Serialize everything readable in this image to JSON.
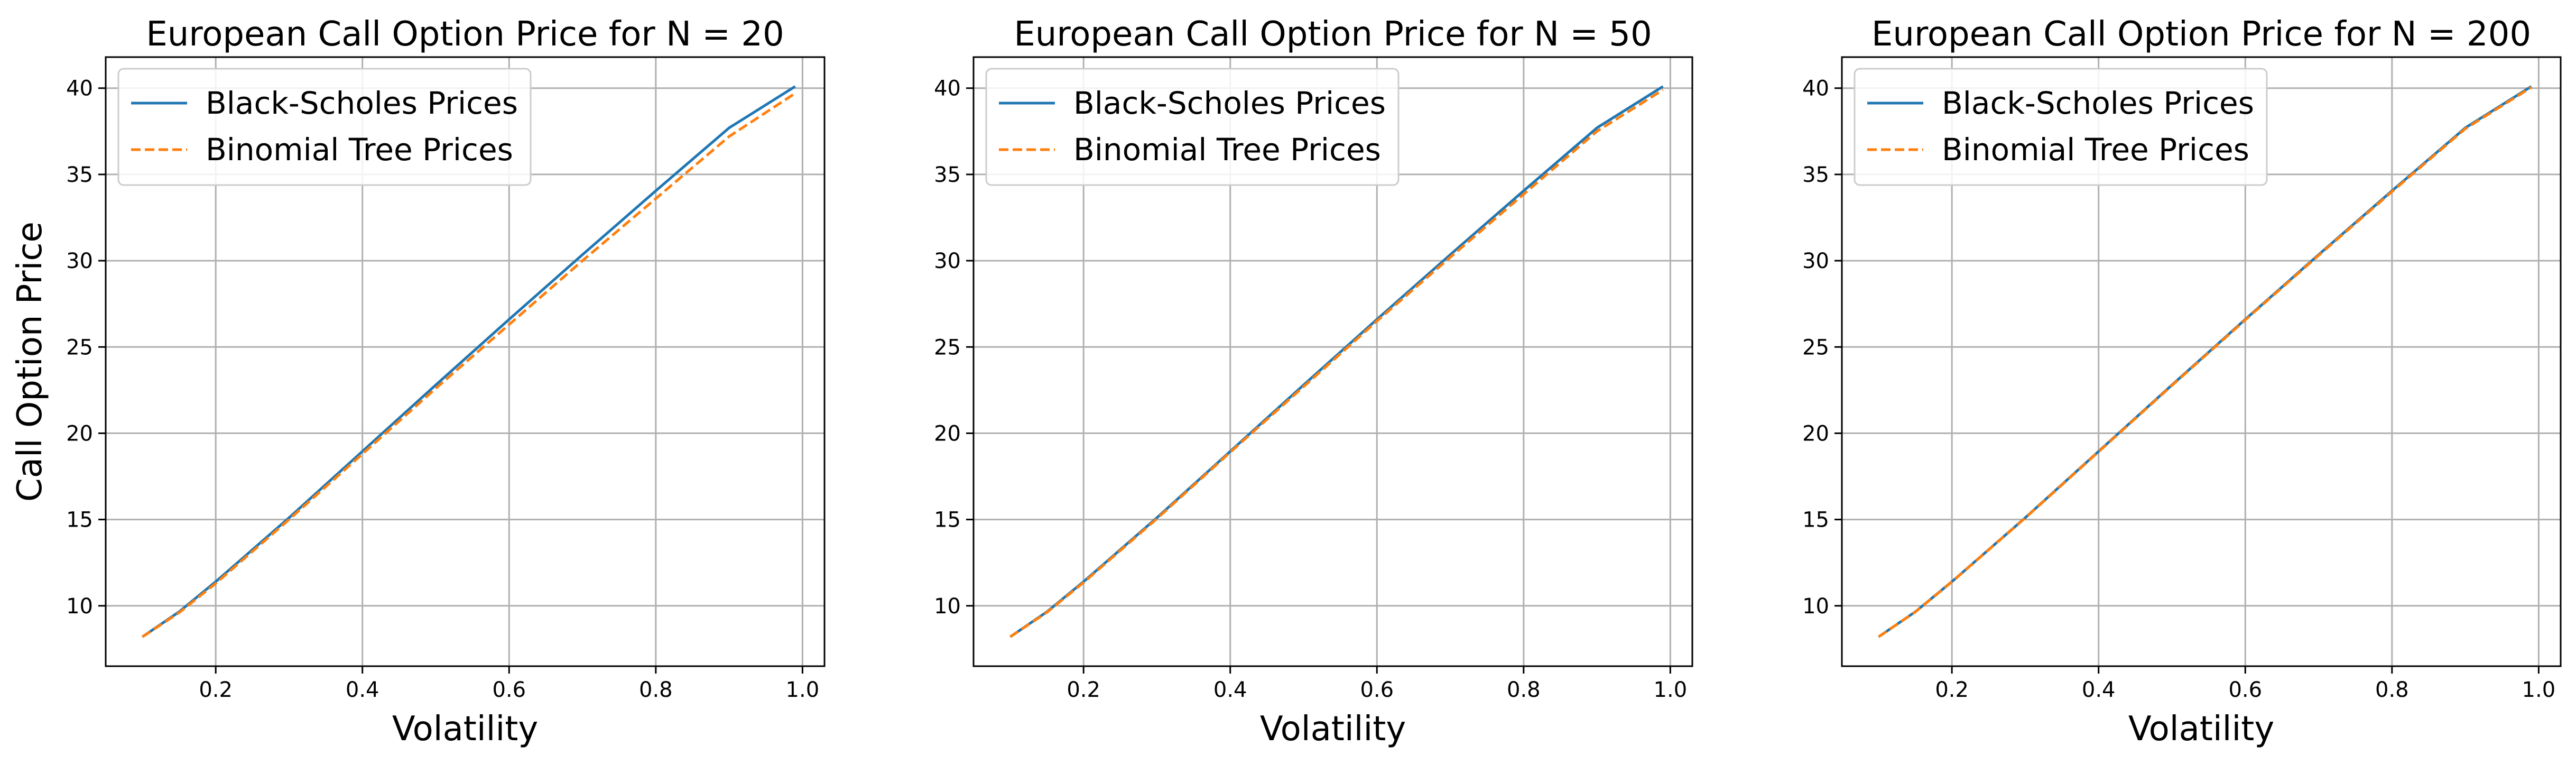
{
  "chart_data": [
    {
      "type": "line",
      "title": "European Call Option Price for N = 20",
      "xlabel": "Volatility",
      "ylabel": "Call Option Price",
      "xlim": [
        0.05,
        1.03
      ],
      "ylim": [
        6.5,
        41.8
      ],
      "xticks": [
        0.2,
        0.4,
        0.6,
        0.8,
        1.0
      ],
      "xtick_labels": [
        "0.2",
        "0.4",
        "0.6",
        "0.8",
        "1.0"
      ],
      "yticks": [
        10,
        15,
        20,
        25,
        30,
        35,
        40
      ],
      "ytick_labels": [
        "10",
        "15",
        "20",
        "25",
        "30",
        "35",
        "40"
      ],
      "grid": true,
      "legend": "top-left",
      "x": [
        0.1,
        0.15,
        0.2,
        0.3,
        0.4,
        0.5,
        0.6,
        0.7,
        0.8,
        0.9,
        0.99
      ],
      "series": [
        {
          "name": "Black-Scholes Prices",
          "color": "#1f77b4",
          "style": "solid",
          "values": [
            8.2,
            9.65,
            11.4,
            15.1,
            18.95,
            22.8,
            26.6,
            30.35,
            34.05,
            37.7,
            40.1
          ]
        },
        {
          "name": "Binomial Tree Prices",
          "color": "#ff7f0e",
          "style": "dashed",
          "values": [
            8.2,
            9.6,
            11.3,
            15.0,
            18.8,
            22.6,
            26.3,
            30.0,
            33.6,
            37.2,
            39.7
          ]
        }
      ]
    },
    {
      "type": "line",
      "title": "European Call Option Price for N = 50",
      "xlabel": "Volatility",
      "ylabel": "",
      "xlim": [
        0.05,
        1.03
      ],
      "ylim": [
        6.5,
        41.8
      ],
      "xticks": [
        0.2,
        0.4,
        0.6,
        0.8,
        1.0
      ],
      "xtick_labels": [
        "0.2",
        "0.4",
        "0.6",
        "0.8",
        "1.0"
      ],
      "yticks": [
        10,
        15,
        20,
        25,
        30,
        35,
        40
      ],
      "ytick_labels": [
        "10",
        "15",
        "20",
        "25",
        "30",
        "35",
        "40"
      ],
      "grid": true,
      "legend": "top-left",
      "x": [
        0.1,
        0.15,
        0.2,
        0.3,
        0.4,
        0.5,
        0.6,
        0.7,
        0.8,
        0.9,
        0.99
      ],
      "series": [
        {
          "name": "Black-Scholes Prices",
          "color": "#1f77b4",
          "style": "solid",
          "values": [
            8.2,
            9.65,
            11.4,
            15.1,
            18.95,
            22.8,
            26.6,
            30.35,
            34.05,
            37.7,
            40.1
          ]
        },
        {
          "name": "Binomial Tree Prices",
          "color": "#ff7f0e",
          "style": "dashed",
          "values": [
            8.2,
            9.62,
            11.35,
            15.05,
            18.9,
            22.7,
            26.5,
            30.2,
            33.85,
            37.5,
            39.9
          ]
        }
      ]
    },
    {
      "type": "line",
      "title": "European Call Option Price for N = 200",
      "xlabel": "Volatility",
      "ylabel": "",
      "xlim": [
        0.05,
        1.03
      ],
      "ylim": [
        6.5,
        41.8
      ],
      "xticks": [
        0.2,
        0.4,
        0.6,
        0.8,
        1.0
      ],
      "xtick_labels": [
        "0.2",
        "0.4",
        "0.6",
        "0.8",
        "1.0"
      ],
      "yticks": [
        10,
        15,
        20,
        25,
        30,
        35,
        40
      ],
      "ytick_labels": [
        "10",
        "15",
        "20",
        "25",
        "30",
        "35",
        "40"
      ],
      "grid": true,
      "legend": "top-left",
      "x": [
        0.1,
        0.15,
        0.2,
        0.3,
        0.4,
        0.5,
        0.6,
        0.7,
        0.8,
        0.9,
        0.99
      ],
      "series": [
        {
          "name": "Black-Scholes Prices",
          "color": "#1f77b4",
          "style": "solid",
          "values": [
            8.2,
            9.65,
            11.4,
            15.1,
            18.95,
            22.8,
            26.6,
            30.35,
            34.05,
            37.7,
            40.1
          ]
        },
        {
          "name": "Binomial Tree Prices",
          "color": "#ff7f0e",
          "style": "dashed",
          "values": [
            8.2,
            9.64,
            11.39,
            15.09,
            18.93,
            22.77,
            26.57,
            30.31,
            34.0,
            37.65,
            40.05
          ]
        }
      ]
    }
  ]
}
